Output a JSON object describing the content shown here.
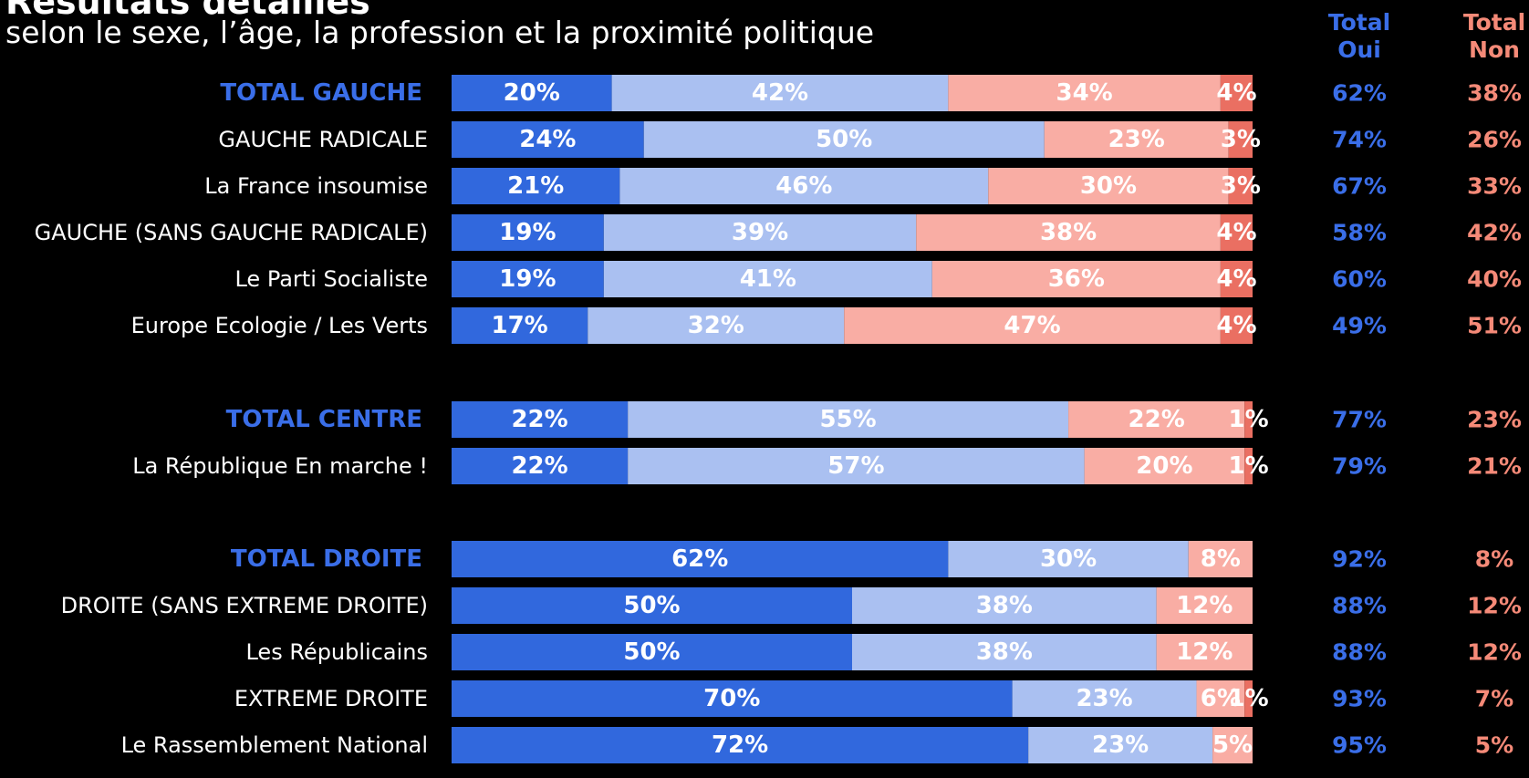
{
  "title": "Résultats détaillés",
  "subtitle": "selon le sexe, l’âge, la profession et la proximité politique",
  "columns": {
    "oui_line1": "Total",
    "oui_line2": "Oui",
    "non_line1": "Total",
    "non_line2": "Non"
  },
  "colors": {
    "tout_a_fait_oui": "#3168dd",
    "plutot_oui": "#aac0f1",
    "plutot_non": "#f9ada4",
    "tout_a_fait_non": "#ea6f62",
    "total_oui_text": "#3a6ee8",
    "total_non_text": "#f58a78",
    "group_label": "#3a6ee8"
  },
  "chart_data": {
    "type": "bar",
    "orientation": "horizontal-stacked",
    "unit": "%",
    "rows": [
      {
        "label": "TOTAL GAUCHE",
        "is_total": true,
        "values": [
          20,
          42,
          34,
          4
        ],
        "total_oui": "62%",
        "total_non": "38%"
      },
      {
        "label": "GAUCHE RADICALE",
        "is_total": false,
        "values": [
          24,
          50,
          23,
          3
        ],
        "total_oui": "74%",
        "total_non": "26%"
      },
      {
        "label": "La France insoumise",
        "is_total": false,
        "values": [
          21,
          46,
          30,
          3
        ],
        "total_oui": "67%",
        "total_non": "33%"
      },
      {
        "label": "GAUCHE (SANS GAUCHE RADICALE)",
        "is_total": false,
        "values": [
          19,
          39,
          38,
          4
        ],
        "total_oui": "58%",
        "total_non": "42%"
      },
      {
        "label": "Le Parti Socialiste",
        "is_total": false,
        "values": [
          19,
          41,
          36,
          4
        ],
        "total_oui": "60%",
        "total_non": "40%"
      },
      {
        "label": "Europe Ecologie / Les Verts",
        "is_total": false,
        "values": [
          17,
          32,
          47,
          4
        ],
        "total_oui": "49%",
        "total_non": "51%"
      },
      {
        "label": "TOTAL CENTRE",
        "is_total": true,
        "values": [
          22,
          55,
          22,
          1
        ],
        "total_oui": "77%",
        "total_non": "23%"
      },
      {
        "label": "La République En marche !",
        "is_total": false,
        "values": [
          22,
          57,
          20,
          1
        ],
        "total_oui": "79%",
        "total_non": "21%"
      },
      {
        "label": "TOTAL DROITE",
        "is_total": true,
        "values": [
          62,
          30,
          8,
          0
        ],
        "total_oui": "92%",
        "total_non": "8%"
      },
      {
        "label": "DROITE (SANS EXTREME DROITE)",
        "is_total": false,
        "values": [
          50,
          38,
          12,
          0
        ],
        "total_oui": "88%",
        "total_non": "12%"
      },
      {
        "label": "Les Républicains",
        "is_total": false,
        "values": [
          50,
          38,
          12,
          0
        ],
        "total_oui": "88%",
        "total_non": "12%"
      },
      {
        "label": "EXTREME DROITE",
        "is_total": false,
        "values": [
          70,
          23,
          6,
          1
        ],
        "total_oui": "93%",
        "total_non": "7%"
      },
      {
        "label": "Le Rassemblement National",
        "is_total": false,
        "values": [
          72,
          23,
          5,
          0
        ],
        "total_oui": "95%",
        "total_non": "5%"
      }
    ]
  }
}
